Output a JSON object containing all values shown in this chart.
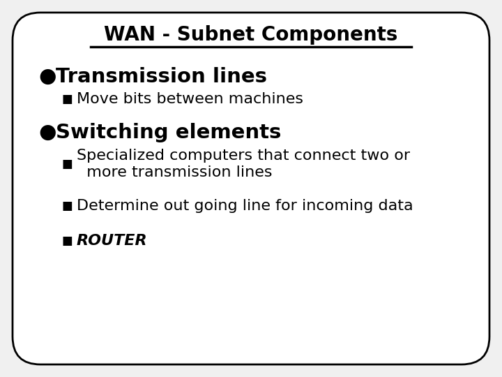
{
  "title": "WAN - Subnet Components",
  "background_color": "#f0f0f0",
  "slide_background": "#f0f0f0",
  "border_color": "#000000",
  "text_color": "#000000",
  "bullet1_header": "Transmission lines",
  "bullet1_sub": [
    "Move bits between machines"
  ],
  "bullet2_header": "Switching elements",
  "bullet2_sub": [
    "Specialized computers that connect two or\n  more transmission lines",
    "Determine out going line for incoming data",
    "ROUTER"
  ],
  "title_fontsize": 20,
  "header_fontsize": 21,
  "sub_fontsize": 16,
  "figwidth": 7.2,
  "figheight": 5.4,
  "dpi": 100
}
